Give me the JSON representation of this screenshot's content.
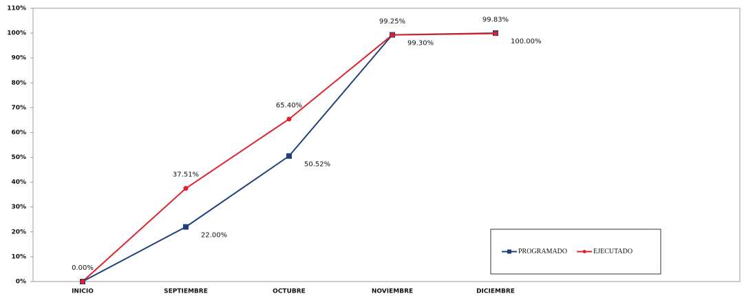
{
  "chart_data": {
    "type": "line",
    "categories": [
      "INICIO",
      "SEPTIEMBRE",
      "OCTUBRE",
      "NOVIEMBRE",
      "DICIEMBRE"
    ],
    "series": [
      {
        "name": "PROGRAMADO",
        "color": "#1f3f7a",
        "values": [
          0,
          22.0,
          50.52,
          99.3,
          100.0
        ],
        "value_labels": [
          null,
          "22.00%",
          "50.52%",
          "99.30%",
          "100.00%"
        ]
      },
      {
        "name": "EJECUTADO",
        "color": "#e0202a",
        "values": [
          0,
          37.51,
          65.4,
          99.25,
          99.83
        ],
        "value_labels": [
          "0.00%",
          "37.51%",
          "65.40%",
          "99.25%",
          "99.83%"
        ]
      }
    ],
    "ylim": [
      0,
      110
    ],
    "yticks": [
      {
        "value": 0,
        "label": "0%"
      },
      {
        "value": 10,
        "label": "10%"
      },
      {
        "value": 20,
        "label": "20%"
      },
      {
        "value": 30,
        "label": "30%"
      },
      {
        "value": 40,
        "label": "40%"
      },
      {
        "value": 50,
        "label": "50%"
      },
      {
        "value": 60,
        "label": "60%"
      },
      {
        "value": 70,
        "label": "70%"
      },
      {
        "value": 80,
        "label": "80%"
      },
      {
        "value": 90,
        "label": "90%"
      },
      {
        "value": 100,
        "label": "100%"
      },
      {
        "value": 110,
        "label": "110%"
      }
    ],
    "legend": "lower right"
  }
}
